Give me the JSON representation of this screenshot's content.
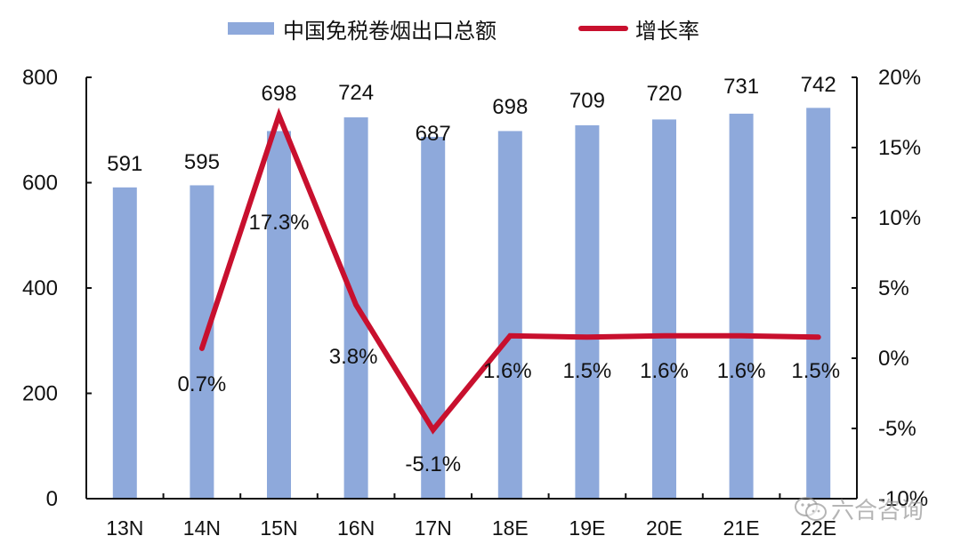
{
  "chart_data": {
    "type": "bar+line",
    "title": "",
    "legend": [
      {
        "name": "中国免税卷烟出口总额",
        "kind": "bar",
        "color": "#8EA9DB"
      },
      {
        "name": "增长率",
        "kind": "line",
        "color": "#C8102E"
      }
    ],
    "legend_position": "top",
    "categories": [
      "13N",
      "14N",
      "15N",
      "16N",
      "17N",
      "18E",
      "19E",
      "20E",
      "21E",
      "22E"
    ],
    "series": [
      {
        "name": "中国免税卷烟出口总额",
        "type": "bar",
        "axis": "left",
        "values": [
          591,
          595,
          698,
          724,
          687,
          698,
          709,
          720,
          731,
          742
        ],
        "labels": [
          "591",
          "595",
          "698",
          "724",
          "687",
          "698",
          "709",
          "720",
          "731",
          "742"
        ]
      },
      {
        "name": "增长率",
        "type": "line",
        "axis": "right",
        "values": [
          null,
          0.7,
          17.3,
          3.8,
          -5.1,
          1.6,
          1.5,
          1.6,
          1.6,
          1.5
        ],
        "labels": [
          "",
          "0.7%",
          "17.3%",
          "3.8%",
          "-5.1%",
          "1.6%",
          "1.5%",
          "1.6%",
          "1.6%",
          "1.5%"
        ]
      }
    ],
    "y_left": {
      "min": 0,
      "max": 800,
      "ticks": [
        "0",
        "200",
        "400",
        "600",
        "800"
      ]
    },
    "y_right": {
      "min": -10,
      "max": 20,
      "ticks": [
        "-10%",
        "-5%",
        "0%",
        "5%",
        "10%",
        "15%",
        "20%"
      ]
    },
    "xlabel": "",
    "ylabel": "",
    "grid": false
  },
  "watermark": {
    "text": "六合咨询",
    "icon": "wechat-icon"
  }
}
